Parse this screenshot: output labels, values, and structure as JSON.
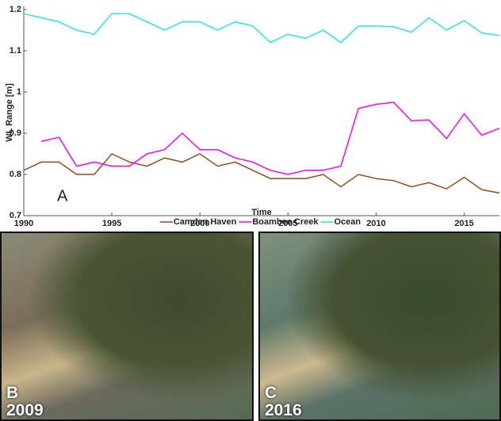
{
  "chart_data": {
    "type": "line",
    "ylabel": "WL Range [m]",
    "xlabel": "Time",
    "annotation": "A",
    "x": [
      1990,
      1991,
      1992,
      1993,
      1994,
      1995,
      1996,
      1997,
      1998,
      1999,
      2000,
      2001,
      2002,
      2003,
      2004,
      2005,
      2006,
      2007,
      2008,
      2009,
      2010,
      2011,
      2012,
      2013,
      2014,
      2015,
      2016,
      2017
    ],
    "series": [
      {
        "name": "Camden Haven",
        "color": "#9c4a1a",
        "values": [
          0.81,
          0.83,
          0.83,
          0.8,
          0.8,
          0.85,
          0.83,
          0.82,
          0.84,
          0.83,
          0.85,
          0.82,
          0.83,
          0.81,
          0.79,
          0.79,
          0.79,
          0.8,
          0.77,
          0.8,
          0.79,
          0.785,
          0.77,
          0.78,
          0.765,
          0.793,
          0.763,
          0.755
        ]
      },
      {
        "name": "Boambee Creek",
        "color": "#ff00ff",
        "values": [
          null,
          0.88,
          0.89,
          0.82,
          0.83,
          0.82,
          0.82,
          0.85,
          0.86,
          0.9,
          0.86,
          0.86,
          0.84,
          0.83,
          0.81,
          0.8,
          0.81,
          0.81,
          0.82,
          0.96,
          0.97,
          0.975,
          0.93,
          0.932,
          0.887,
          0.947,
          0.895,
          0.912
        ]
      },
      {
        "name": "Ocean",
        "color": "#22e8f0",
        "values": [
          1.19,
          1.18,
          1.17,
          1.15,
          1.14,
          1.19,
          1.19,
          1.17,
          1.15,
          1.17,
          1.17,
          1.15,
          1.17,
          1.16,
          1.12,
          1.14,
          1.13,
          1.15,
          1.12,
          1.16,
          1.16,
          1.158,
          1.145,
          1.18,
          1.15,
          1.173,
          1.143,
          1.137
        ]
      }
    ],
    "xlim": [
      1990,
      2017
    ],
    "xticks": [
      1990,
      1995,
      2000,
      2005,
      2010,
      2015
    ],
    "ylim": [
      0.7,
      1.2
    ],
    "yticks": [
      0.7,
      0.8,
      0.9,
      1,
      1.1,
      1.2
    ],
    "legend": "bottom"
  },
  "images": [
    {
      "letter": "B",
      "year": "2009"
    },
    {
      "letter": "C",
      "year": "2016"
    }
  ]
}
